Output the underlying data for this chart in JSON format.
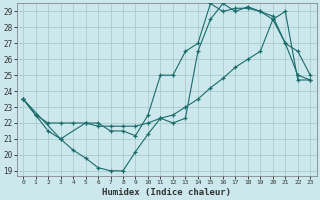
{
  "xlabel": "Humidex (Indice chaleur)",
  "background_color": "#cce8ed",
  "grid_color": "#aacccc",
  "line_color": "#1a6b6b",
  "xlim": [
    -0.5,
    23.5
  ],
  "ylim_min": 18.7,
  "ylim_max": 29.5,
  "yticks": [
    19,
    20,
    21,
    22,
    23,
    24,
    25,
    26,
    27,
    28,
    29
  ],
  "xticks": [
    0,
    1,
    2,
    3,
    4,
    5,
    6,
    7,
    8,
    9,
    10,
    11,
    12,
    13,
    14,
    15,
    16,
    17,
    18,
    19,
    20,
    21,
    22,
    23
  ],
  "line1_x": [
    0,
    1,
    2,
    3,
    4,
    5,
    6,
    7,
    8,
    9,
    10,
    11,
    12,
    13,
    14,
    15,
    16,
    17,
    18,
    19,
    20,
    21,
    22,
    23
  ],
  "line1_y": [
    23.5,
    22.5,
    21.5,
    21.0,
    20.3,
    19.8,
    19.2,
    19.0,
    19.0,
    20.2,
    21.3,
    22.3,
    22.0,
    22.3,
    26.5,
    28.5,
    29.5,
    29.0,
    29.3,
    29.0,
    28.5,
    27.0,
    25.0,
    24.7
  ],
  "line2_x": [
    0,
    3,
    5,
    6,
    7,
    8,
    9,
    10,
    11,
    12,
    13,
    14,
    15,
    16,
    17,
    18,
    19,
    20,
    21,
    22,
    23
  ],
  "line2_y": [
    23.5,
    21.0,
    22.0,
    22.0,
    21.5,
    21.5,
    21.2,
    22.5,
    25.0,
    25.0,
    26.5,
    27.0,
    29.5,
    29.0,
    29.2,
    29.2,
    29.0,
    28.7,
    27.0,
    26.5,
    25.0
  ],
  "line3_x": [
    0,
    1,
    2,
    3,
    4,
    5,
    6,
    7,
    8,
    9,
    10,
    11,
    12,
    13,
    14,
    15,
    16,
    17,
    18,
    19,
    20,
    21,
    22,
    23
  ],
  "line3_y": [
    23.5,
    22.5,
    22.0,
    22.0,
    22.0,
    22.0,
    21.8,
    21.8,
    21.8,
    21.8,
    22.0,
    22.3,
    22.5,
    23.0,
    23.5,
    24.2,
    24.8,
    25.5,
    26.0,
    26.5,
    28.5,
    29.0,
    24.7,
    24.7
  ]
}
